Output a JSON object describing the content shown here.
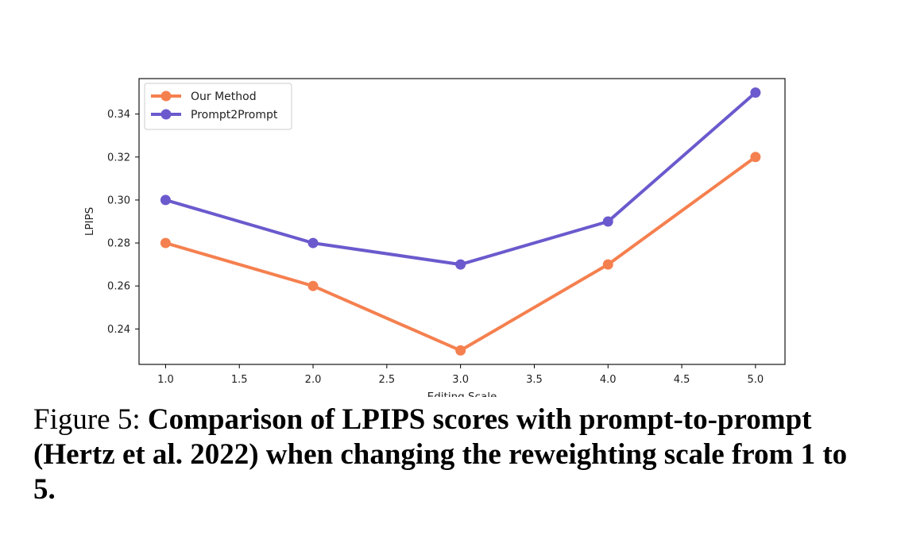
{
  "chart_data": {
    "type": "line",
    "xlabel": "Editing Scale",
    "ylabel": "LPIPS",
    "xlim": [
      0.82,
      5.2
    ],
    "ylim": [
      0.2235,
      0.3565
    ],
    "x_ticks": [
      "1.0",
      "1.5",
      "2.0",
      "2.5",
      "3.0",
      "3.5",
      "4.0",
      "4.5",
      "5.0"
    ],
    "y_ticks": [
      "0.24",
      "0.26",
      "0.28",
      "0.30",
      "0.32",
      "0.34"
    ],
    "x": [
      1.0,
      2.0,
      3.0,
      4.0,
      5.0
    ],
    "series": [
      {
        "name": "Our Method",
        "color": "#F5804F",
        "values": [
          0.28,
          0.26,
          0.23,
          0.27,
          0.32
        ]
      },
      {
        "name": "Prompt2Prompt",
        "color": "#6A5ACD",
        "values": [
          0.3,
          0.28,
          0.27,
          0.29,
          0.35
        ]
      }
    ],
    "legend_position": "upper-left",
    "grid": false
  },
  "caption": {
    "prefix": "Figure 5: ",
    "text": "Comparison of LPIPS scores with prompt-to-prompt (Hertz et al. 2022) when changing the reweighting scale from 1 to 5."
  }
}
